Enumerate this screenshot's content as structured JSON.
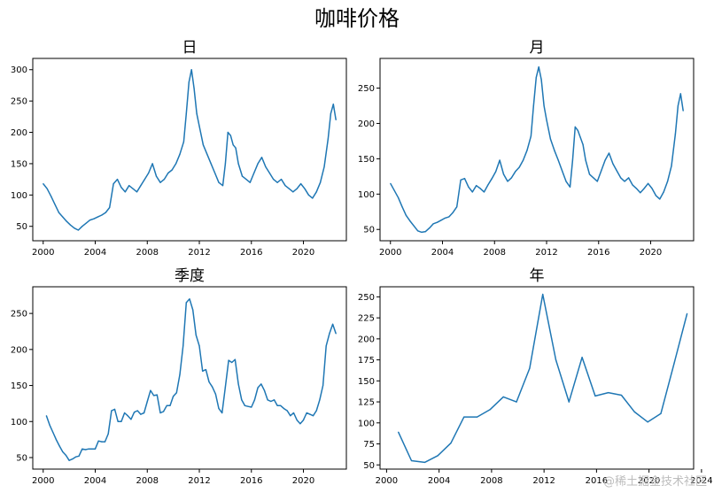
{
  "figure": {
    "title": "咖啡价格",
    "watermark": "@稀土掘金技术社区"
  },
  "colors": {
    "line": "#1f77b4",
    "axis": "#000000"
  },
  "chart_data": [
    {
      "type": "line",
      "title": "日",
      "xlabel": "",
      "ylabel": "",
      "xlim": [
        1999.2,
        2023.3
      ],
      "ylim": [
        27,
        318
      ],
      "xticks": [
        2000,
        2004,
        2008,
        2012,
        2016,
        2020
      ],
      "yticks": [
        50,
        100,
        150,
        200,
        250,
        300
      ],
      "grid": false,
      "x": [
        2000.0,
        2000.3,
        2000.6,
        2000.9,
        2001.2,
        2001.5,
        2001.8,
        2002.1,
        2002.4,
        2002.7,
        2003.0,
        2003.3,
        2003.6,
        2003.9,
        2004.2,
        2004.5,
        2004.8,
        2005.1,
        2005.4,
        2005.7,
        2006.0,
        2006.3,
        2006.6,
        2006.9,
        2007.2,
        2007.5,
        2007.8,
        2008.1,
        2008.4,
        2008.7,
        2009.0,
        2009.3,
        2009.6,
        2009.9,
        2010.2,
        2010.5,
        2010.8,
        2011.0,
        2011.2,
        2011.4,
        2011.6,
        2011.8,
        2012.0,
        2012.3,
        2012.6,
        2012.9,
        2013.2,
        2013.5,
        2013.8,
        2014.0,
        2014.2,
        2014.4,
        2014.6,
        2014.8,
        2015.0,
        2015.3,
        2015.6,
        2015.9,
        2016.2,
        2016.5,
        2016.8,
        2017.1,
        2017.4,
        2017.7,
        2018.0,
        2018.3,
        2018.6,
        2018.9,
        2019.2,
        2019.5,
        2019.8,
        2020.1,
        2020.4,
        2020.7,
        2021.0,
        2021.3,
        2021.6,
        2021.9,
        2022.1,
        2022.3,
        2022.5
      ],
      "values": [
        118,
        110,
        98,
        85,
        72,
        65,
        58,
        52,
        47,
        44,
        50,
        55,
        60,
        62,
        65,
        68,
        72,
        80,
        118,
        125,
        112,
        105,
        115,
        110,
        105,
        115,
        125,
        135,
        150,
        130,
        120,
        125,
        135,
        140,
        150,
        165,
        185,
        230,
        280,
        300,
        270,
        230,
        210,
        180,
        165,
        150,
        135,
        120,
        115,
        150,
        200,
        195,
        180,
        175,
        150,
        130,
        125,
        120,
        135,
        150,
        160,
        145,
        135,
        125,
        120,
        125,
        115,
        110,
        105,
        110,
        118,
        110,
        100,
        95,
        105,
        120,
        145,
        190,
        230,
        245,
        220
      ]
    },
    {
      "type": "line",
      "title": "月",
      "xlabel": "",
      "ylabel": "",
      "xlim": [
        1999.2,
        2023.3
      ],
      "ylim": [
        34,
        292
      ],
      "xticks": [
        2000,
        2004,
        2008,
        2012,
        2016,
        2020
      ],
      "yticks": [
        50,
        100,
        150,
        200,
        250
      ],
      "grid": false,
      "x": [
        2000.0,
        2000.3,
        2000.6,
        2000.9,
        2001.2,
        2001.5,
        2001.8,
        2002.1,
        2002.4,
        2002.7,
        2003.0,
        2003.3,
        2003.6,
        2003.9,
        2004.2,
        2004.5,
        2004.8,
        2005.1,
        2005.4,
        2005.7,
        2006.0,
        2006.3,
        2006.6,
        2006.9,
        2007.2,
        2007.5,
        2007.8,
        2008.1,
        2008.4,
        2008.7,
        2009.0,
        2009.3,
        2009.6,
        2009.9,
        2010.2,
        2010.5,
        2010.8,
        2011.0,
        2011.2,
        2011.4,
        2011.6,
        2011.8,
        2012.0,
        2012.3,
        2012.6,
        2012.9,
        2013.2,
        2013.5,
        2013.8,
        2014.0,
        2014.2,
        2014.4,
        2014.6,
        2014.8,
        2015.0,
        2015.3,
        2015.6,
        2015.9,
        2016.2,
        2016.5,
        2016.8,
        2017.1,
        2017.4,
        2017.7,
        2018.0,
        2018.3,
        2018.6,
        2018.9,
        2019.2,
        2019.5,
        2019.8,
        2020.1,
        2020.4,
        2020.7,
        2021.0,
        2021.3,
        2021.6,
        2021.9,
        2022.1,
        2022.3,
        2022.5
      ],
      "values": [
        115,
        105,
        95,
        82,
        70,
        62,
        55,
        48,
        46,
        47,
        52,
        58,
        60,
        63,
        66,
        68,
        74,
        82,
        120,
        122,
        110,
        103,
        112,
        108,
        103,
        113,
        122,
        132,
        148,
        128,
        118,
        123,
        132,
        138,
        148,
        162,
        182,
        225,
        265,
        280,
        262,
        225,
        205,
        178,
        162,
        148,
        133,
        118,
        110,
        148,
        195,
        190,
        180,
        170,
        148,
        128,
        123,
        118,
        133,
        148,
        158,
        143,
        133,
        123,
        118,
        123,
        113,
        108,
        102,
        108,
        115,
        108,
        98,
        93,
        103,
        118,
        140,
        185,
        225,
        242,
        218
      ]
    },
    {
      "type": "line",
      "title": "季度",
      "xlabel": "",
      "ylabel": "",
      "xlim": [
        1999.2,
        2023.3
      ],
      "ylim": [
        34,
        287
      ],
      "xticks": [
        2000,
        2004,
        2008,
        2012,
        2016,
        2020
      ],
      "yticks": [
        50,
        100,
        150,
        200,
        250
      ],
      "grid": false,
      "x": [
        2000.25,
        2000.5,
        2000.75,
        2001.0,
        2001.25,
        2001.5,
        2001.75,
        2002.0,
        2002.25,
        2002.5,
        2002.75,
        2003.0,
        2003.25,
        2003.5,
        2003.75,
        2004.0,
        2004.25,
        2004.5,
        2004.75,
        2005.0,
        2005.25,
        2005.5,
        2005.75,
        2006.0,
        2006.25,
        2006.5,
        2006.75,
        2007.0,
        2007.25,
        2007.5,
        2007.75,
        2008.0,
        2008.25,
        2008.5,
        2008.75,
        2009.0,
        2009.25,
        2009.5,
        2009.75,
        2010.0,
        2010.25,
        2010.5,
        2010.75,
        2011.0,
        2011.25,
        2011.5,
        2011.75,
        2012.0,
        2012.25,
        2012.5,
        2012.75,
        2013.0,
        2013.25,
        2013.5,
        2013.75,
        2014.0,
        2014.25,
        2014.5,
        2014.75,
        2015.0,
        2015.25,
        2015.5,
        2015.75,
        2016.0,
        2016.25,
        2016.5,
        2016.75,
        2017.0,
        2017.25,
        2017.5,
        2017.75,
        2018.0,
        2018.25,
        2018.5,
        2018.75,
        2019.0,
        2019.25,
        2019.5,
        2019.75,
        2020.0,
        2020.25,
        2020.5,
        2020.75,
        2021.0,
        2021.25,
        2021.5,
        2021.75,
        2022.0,
        2022.25,
        2022.5
      ],
      "values": [
        108,
        95,
        85,
        75,
        66,
        58,
        53,
        46,
        48,
        51,
        52,
        62,
        61,
        62,
        62,
        62,
        73,
        72,
        72,
        83,
        115,
        117,
        100,
        100,
        112,
        108,
        103,
        113,
        115,
        110,
        112,
        128,
        143,
        136,
        137,
        112,
        114,
        122,
        122,
        135,
        140,
        165,
        205,
        265,
        270,
        255,
        220,
        205,
        170,
        172,
        155,
        148,
        138,
        118,
        112,
        148,
        185,
        182,
        186,
        152,
        130,
        122,
        121,
        120,
        130,
        147,
        152,
        143,
        130,
        128,
        130,
        122,
        122,
        118,
        115,
        108,
        112,
        102,
        97,
        102,
        112,
        110,
        108,
        115,
        130,
        150,
        205,
        222,
        235,
        222
      ]
    },
    {
      "type": "line",
      "title": "年",
      "xlabel": "",
      "ylabel": "",
      "xlim": [
        1999.5,
        2023.4
      ],
      "ylim": [
        45,
        262
      ],
      "xticks": [
        2000,
        2004,
        2008,
        2012,
        2016,
        2020,
        2024
      ],
      "yticks": [
        50,
        75,
        100,
        125,
        150,
        175,
        200,
        225,
        250
      ],
      "grid": false,
      "x": [
        2000.9,
        2001.9,
        2002.9,
        2003.9,
        2004.9,
        2005.9,
        2006.9,
        2007.9,
        2008.9,
        2009.9,
        2010.9,
        2011.9,
        2012.9,
        2013.9,
        2014.9,
        2015.9,
        2016.9,
        2017.9,
        2018.9,
        2019.9,
        2020.9,
        2021.9,
        2022.9
      ],
      "values": [
        89,
        55,
        53,
        61,
        76,
        107,
        107,
        116,
        131,
        125,
        165,
        253,
        175,
        125,
        178,
        132,
        136,
        133,
        113,
        101,
        111,
        170,
        230
      ]
    }
  ]
}
